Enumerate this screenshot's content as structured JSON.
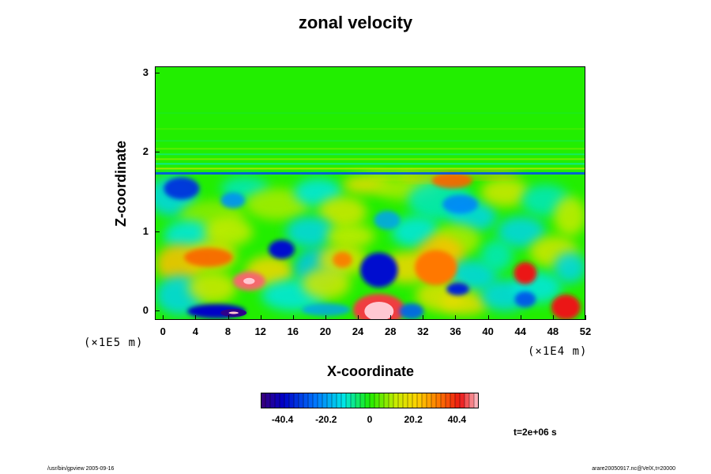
{
  "chart_data": {
    "type": "heatmap",
    "title": "zonal velocity",
    "xlabel": "X-coordinate",
    "ylabel": "Z-coordinate",
    "x_ticks": [
      "0",
      "4",
      "8",
      "12",
      "16",
      "20",
      "24",
      "28",
      "32",
      "36",
      "40",
      "44",
      "48",
      "52"
    ],
    "y_ticks": [
      "0",
      "1",
      "2",
      "3"
    ],
    "x_scale_note": "(×1E4 m)",
    "y_scale_note": "(×1E5 m)",
    "xlim": [
      -1,
      52
    ],
    "ylim": [
      -0.12,
      3.08
    ],
    "colorbar": {
      "ticks": [
        "-40.4",
        "-20.2",
        "0",
        "20.2",
        "40.4"
      ],
      "range": [
        -50.5,
        50.5
      ]
    },
    "annotation": "t=2e+06 s",
    "features": [
      {
        "label": "strong positive core",
        "x": 26.5,
        "z": 0.02,
        "value": 60
      },
      {
        "label": "negative core",
        "x": 8.5,
        "z": 0.0,
        "value": -50
      },
      {
        "label": "positive blob",
        "x": 10.5,
        "z": 0.38,
        "value": 48
      },
      {
        "label": "negative blob",
        "x": 26.5,
        "z": 0.52,
        "value": -42
      },
      {
        "label": "negative blob",
        "x": 14.5,
        "z": 0.78,
        "value": -38
      },
      {
        "label": "positive blob",
        "x": 44.5,
        "z": 0.48,
        "value": 42
      },
      {
        "label": "positive blob",
        "x": 49.5,
        "z": 0.02,
        "value": 40
      },
      {
        "label": "negative patch",
        "x": 2.5,
        "z": 1.55,
        "value": -32
      }
    ]
  },
  "colors": {
    "background": "#ffffff",
    "zero": "#22ee00",
    "positive": "#ee1111",
    "negative": "#1111cc"
  },
  "footer": {
    "left": "/usr/bin/gpview 2005-09-16",
    "right": "arare20050917.nc@VelX,t=20000"
  }
}
